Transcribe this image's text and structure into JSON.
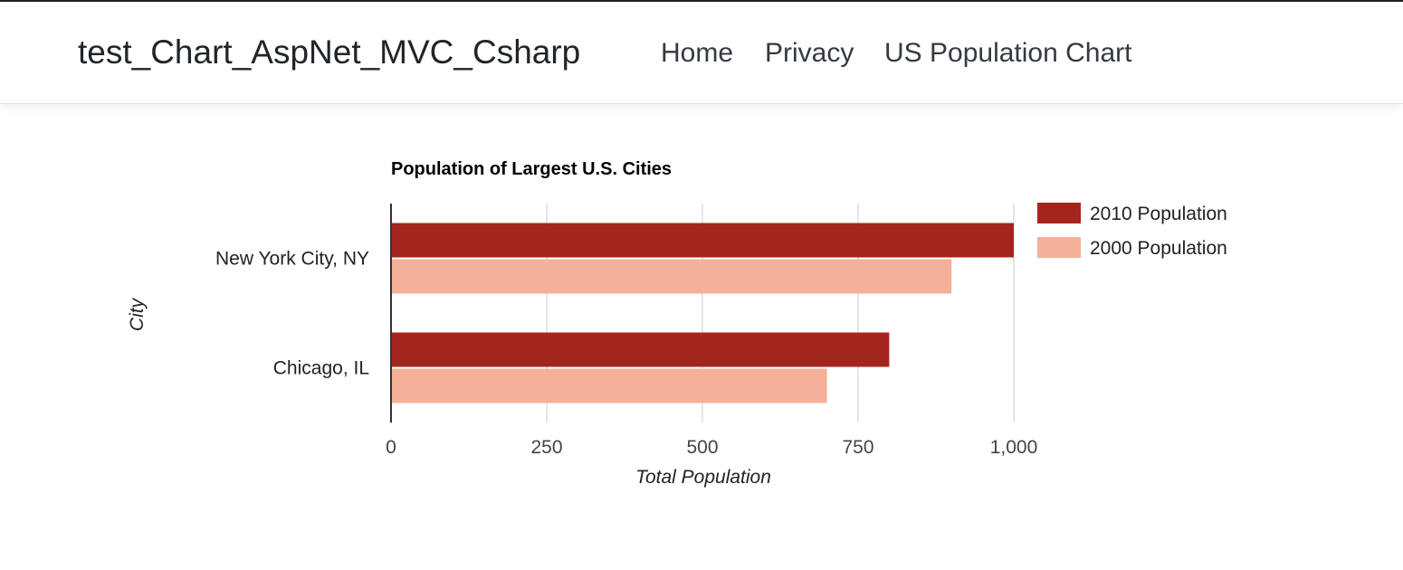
{
  "navbar": {
    "brand": "test_Chart_AspNet_MVC_Csharp",
    "links": [
      "Home",
      "Privacy",
      "US Population Chart"
    ]
  },
  "colors": {
    "series_2010": "#a3261e",
    "series_2000": "#f4b098",
    "gridline": "#cccccc",
    "axis": "#333333"
  },
  "chart_data": {
    "type": "bar",
    "orientation": "horizontal",
    "title": "Population of Largest U.S. Cities",
    "xlabel": "Total Population",
    "ylabel": "City",
    "categories": [
      "New York City, NY",
      "Chicago, IL"
    ],
    "series": [
      {
        "name": "2010 Population",
        "values": [
          1000,
          800
        ]
      },
      {
        "name": "2000 Population",
        "values": [
          900,
          700
        ]
      }
    ],
    "xlim": [
      0,
      1000
    ],
    "xticks": [
      0,
      250,
      500,
      750,
      1000
    ],
    "xtick_labels": [
      "0",
      "250",
      "500",
      "750",
      "1,000"
    ],
    "grid": true,
    "legend_position": "right"
  }
}
